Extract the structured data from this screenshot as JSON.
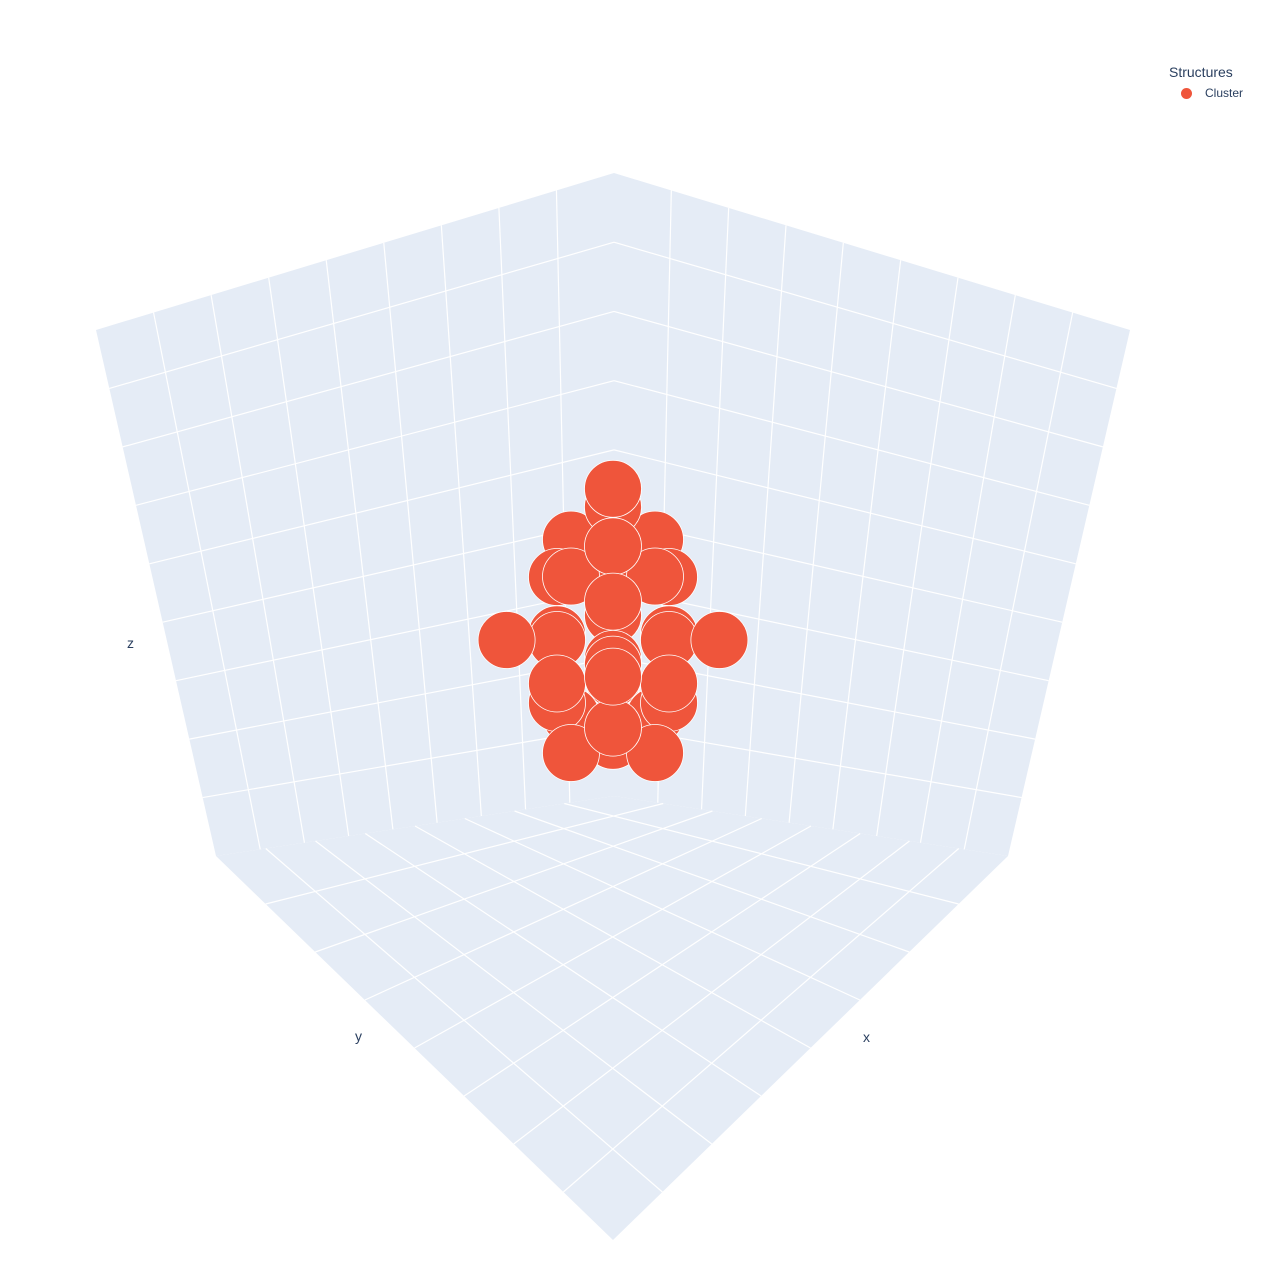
{
  "chart_data": {
    "type": "scatter",
    "projection": "3d",
    "axes": {
      "x": {
        "label": "x"
      },
      "y": {
        "label": "y"
      },
      "z": {
        "label": "z"
      }
    },
    "grid": true,
    "pane_color": "#e5ecf6",
    "grid_color": "#ffffff",
    "legend": {
      "title": "Structures",
      "placement": "top-right"
    },
    "series": [
      {
        "name": "Cluster",
        "color": "#ef553b",
        "points": [
          [
            -1,
            -1,
            -1
          ],
          [
            1,
            -1,
            -1
          ],
          [
            -1,
            1,
            -1
          ],
          [
            1,
            1,
            -1
          ],
          [
            0,
            0,
            -1.6
          ],
          [
            0,
            -1.5,
            -1.5
          ],
          [
            -1.5,
            0,
            -1.5
          ],
          [
            1.5,
            0,
            -1.5
          ],
          [
            0,
            1.5,
            -1.5
          ],
          [
            -1,
            -1,
            0
          ],
          [
            1,
            -1,
            0
          ],
          [
            -1,
            1,
            0
          ],
          [
            1,
            1,
            0
          ],
          [
            0,
            0,
            -0.3
          ],
          [
            -2,
            0,
            -0.3
          ],
          [
            2,
            0,
            -0.3
          ],
          [
            0,
            -2,
            -0.3
          ],
          [
            0,
            2,
            -0.3
          ],
          [
            -2,
            -2,
            0.2
          ],
          [
            2,
            2,
            0.2
          ],
          [
            -1.9,
            1.9,
            0
          ],
          [
            1.9,
            -1.9,
            0
          ],
          [
            -1,
            -1,
            1
          ],
          [
            1,
            -1,
            1
          ],
          [
            -1,
            1,
            1
          ],
          [
            1,
            1,
            1
          ],
          [
            0,
            0,
            1.3
          ],
          [
            -1.5,
            0,
            1.3
          ],
          [
            1.5,
            0,
            1.3
          ],
          [
            0,
            -1.5,
            1.3
          ],
          [
            0,
            1.5,
            1.3
          ],
          [
            0,
            0,
            2.4
          ],
          [
            -0.8,
            -0.8,
            1.8
          ],
          [
            0.8,
            0.8,
            1.8
          ]
        ]
      }
    ]
  }
}
